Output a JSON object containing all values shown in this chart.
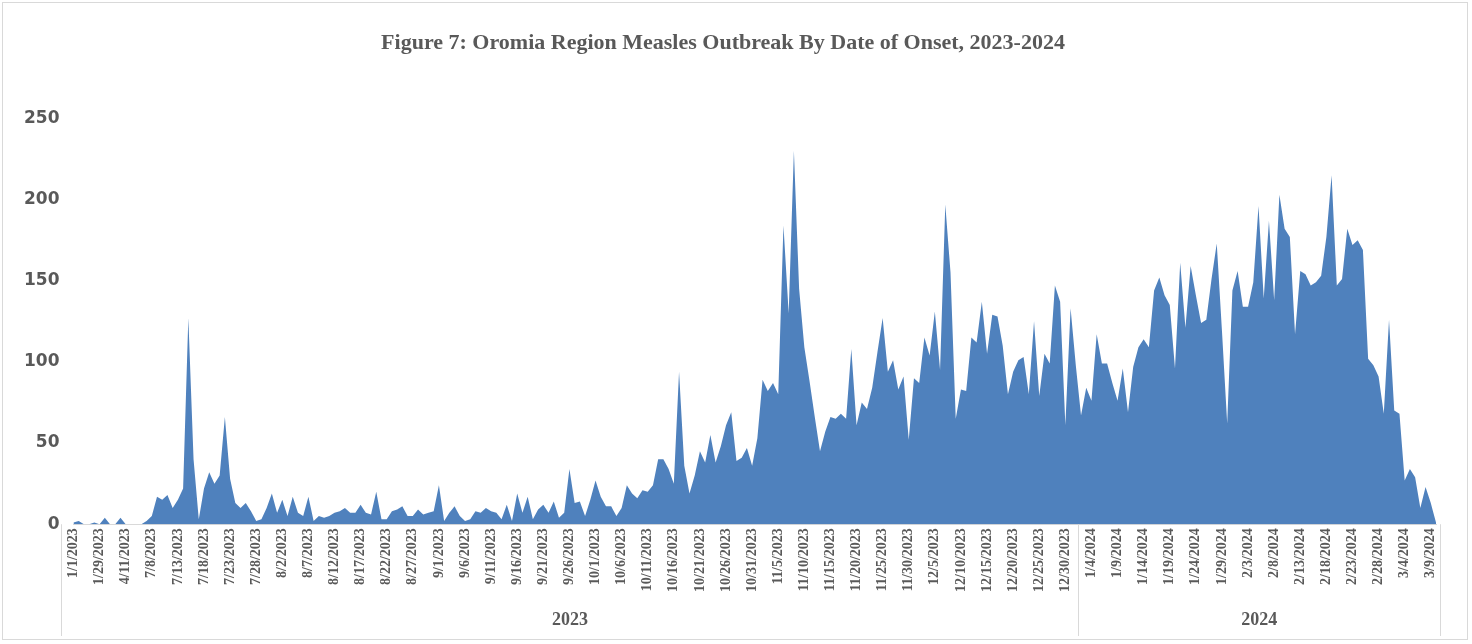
{
  "chart_data": {
    "type": "area",
    "title": "Figure 7: Oromia Region Measles Outbreak By Date of Onset, 2023-2024",
    "categories": [
      "1/1/2023",
      null,
      null,
      null,
      null,
      "1/29/2023",
      null,
      null,
      null,
      null,
      "4/11/2023",
      null,
      null,
      null,
      null,
      "7/8/2023",
      null,
      null,
      null,
      null,
      "7/13/2023",
      null,
      null,
      null,
      null,
      "7/18/2023",
      null,
      null,
      null,
      null,
      "7/23/2023",
      null,
      null,
      null,
      null,
      "7/28/2023",
      null,
      null,
      null,
      null,
      "8/2/2023",
      null,
      null,
      null,
      null,
      "8/7/2023",
      null,
      null,
      null,
      null,
      "8/12/2023",
      null,
      null,
      null,
      null,
      "8/17/2023",
      null,
      null,
      null,
      null,
      "8/22/2023",
      null,
      null,
      null,
      null,
      "8/27/2023",
      null,
      null,
      null,
      null,
      "9/1/2023",
      null,
      null,
      null,
      null,
      "9/6/2023",
      null,
      null,
      null,
      null,
      "9/11/2023",
      null,
      null,
      null,
      null,
      "9/16/2023",
      null,
      null,
      null,
      null,
      "9/21/2023",
      null,
      null,
      null,
      null,
      "9/26/2023",
      null,
      null,
      null,
      null,
      "10/1/2023",
      null,
      null,
      null,
      null,
      "10/6/2023",
      null,
      null,
      null,
      null,
      "10/11/2023",
      null,
      null,
      null,
      null,
      "10/16/2023",
      null,
      null,
      null,
      null,
      "10/21/2023",
      null,
      null,
      null,
      null,
      "10/26/2023",
      null,
      null,
      null,
      null,
      "10/31/2023",
      null,
      null,
      null,
      null,
      "11/5/2023",
      null,
      null,
      null,
      null,
      "11/10/2023",
      null,
      null,
      null,
      null,
      "11/15/2023",
      null,
      null,
      null,
      null,
      "11/20/2023",
      null,
      null,
      null,
      null,
      "11/25/2023",
      null,
      null,
      null,
      null,
      "11/30/2023",
      null,
      null,
      null,
      null,
      "12/5/2023",
      null,
      null,
      null,
      null,
      "12/10/2023",
      null,
      null,
      null,
      null,
      "12/15/2023",
      null,
      null,
      null,
      null,
      "12/20/2023",
      null,
      null,
      null,
      null,
      "12/25/2023",
      null,
      null,
      null,
      null,
      "12/30/2023",
      null,
      null,
      null,
      null,
      "1/4/2024",
      null,
      null,
      null,
      null,
      "1/9/2024",
      null,
      null,
      null,
      null,
      "1/14/2024",
      null,
      null,
      null,
      null,
      "1/19/2024",
      null,
      null,
      null,
      null,
      "1/24/2024",
      null,
      null,
      null,
      null,
      "1/29/2024",
      null,
      null,
      null,
      null,
      "2/3/2024",
      null,
      null,
      null,
      null,
      "2/8/2024",
      null,
      null,
      null,
      null,
      "2/13/2024",
      null,
      null,
      null,
      null,
      "2/18/2024",
      null,
      null,
      null,
      null,
      "2/23/2024",
      null,
      null,
      null,
      null,
      "2/28/2024",
      null,
      null,
      null,
      null,
      "3/4/2024",
      null,
      null,
      null,
      null,
      "3/9/2024",
      null
    ],
    "series": [
      {
        "color": "#4f81bd",
        "values": [
          1,
          2,
          0,
          0,
          1,
          0,
          4,
          0,
          0,
          4,
          0,
          0,
          0,
          0,
          2,
          5,
          17,
          15,
          18,
          10,
          15,
          22,
          127,
          40,
          3,
          22,
          32,
          25,
          30,
          66,
          28,
          13,
          10,
          13,
          8,
          2,
          3,
          10,
          19,
          7,
          15,
          5,
          17,
          7,
          5,
          17,
          2,
          5,
          4,
          5,
          7,
          8,
          10,
          7,
          7,
          12,
          7,
          6,
          20,
          3,
          3,
          8,
          9,
          11,
          5,
          5,
          9,
          6,
          7,
          8,
          24,
          2,
          7,
          11,
          5,
          2,
          3,
          8,
          7,
          10,
          8,
          7,
          3,
          12,
          2,
          19,
          7,
          17,
          3,
          9,
          12,
          7,
          14,
          4,
          7,
          34,
          13,
          14,
          5,
          15,
          27,
          17,
          11,
          11,
          5,
          10,
          24,
          19,
          16,
          21,
          20,
          24,
          40,
          40,
          34,
          25,
          94,
          36,
          19,
          30,
          45,
          38,
          55,
          38,
          48,
          61,
          69,
          39,
          41,
          47,
          36,
          53,
          89,
          82,
          87,
          80,
          184,
          130,
          230,
          145,
          109,
          88,
          66,
          45,
          57,
          66,
          65,
          68,
          65,
          108,
          61,
          75,
          71,
          84,
          106,
          127,
          94,
          101,
          83,
          91,
          52,
          90,
          87,
          115,
          104,
          131,
          95,
          197,
          155,
          65,
          83,
          82,
          115,
          112,
          137,
          105,
          129,
          128,
          110,
          80,
          94,
          101,
          103,
          80,
          125,
          79,
          105,
          99,
          147,
          137,
          61,
          133,
          98,
          67,
          84,
          76,
          117,
          99,
          99,
          87,
          76,
          96,
          69,
          97,
          109,
          114,
          109,
          144,
          152,
          141,
          135,
          96,
          161,
          121,
          159,
          141,
          124,
          126,
          151,
          173,
          119,
          62,
          144,
          156,
          134,
          134,
          149,
          196,
          139,
          187,
          138,
          203,
          182,
          177,
          117,
          156,
          154,
          147,
          149,
          153,
          177,
          215,
          147,
          151,
          182,
          172,
          175,
          169,
          102,
          98,
          91,
          68,
          126,
          70,
          68,
          27,
          34,
          29,
          10,
          23,
          13,
          1
        ]
      }
    ],
    "ylim": [
      0,
      250
    ],
    "yticks": [
      0,
      50,
      100,
      150,
      200,
      250
    ],
    "annotations": [
      "2023",
      "2024"
    ],
    "grid": false,
    "legend": false
  }
}
